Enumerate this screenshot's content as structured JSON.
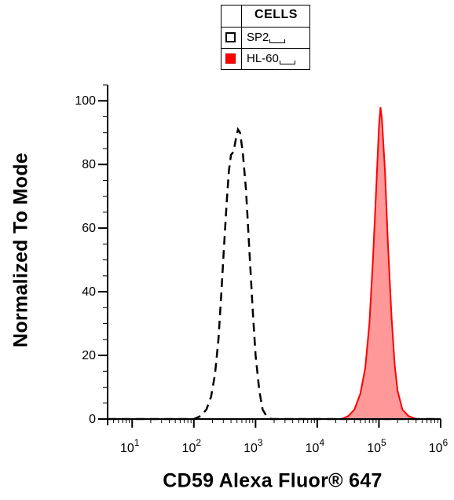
{
  "legend": {
    "title": "CELLS",
    "items": [
      {
        "label": "SP2",
        "style": "open"
      },
      {
        "label": "HL-60",
        "style": "filled"
      }
    ]
  },
  "chart_data": {
    "type": "area",
    "xlabel": "CD59 Alexa Fluor® 647",
    "ylabel": "Normalized To Mode",
    "x_scale": "log",
    "xlim": [
      4,
      1000000
    ],
    "ylim": [
      0,
      105
    ],
    "x_ticks": [
      {
        "base": "10",
        "exp": "1",
        "value": 10
      },
      {
        "base": "10",
        "exp": "2",
        "value": 100
      },
      {
        "base": "10",
        "exp": "3",
        "value": 1000
      },
      {
        "base": "10",
        "exp": "4",
        "value": 10000
      },
      {
        "base": "10",
        "exp": "5",
        "value": 100000
      },
      {
        "base": "10",
        "exp": "6",
        "value": 1000000
      }
    ],
    "y_ticks": [
      0,
      20,
      40,
      60,
      80,
      100
    ],
    "grid": false,
    "series": [
      {
        "name": "SP2",
        "style": "dashed",
        "color": "#000000",
        "fill": "none",
        "points": [
          [
            4,
            0
          ],
          [
            100,
            0
          ],
          [
            130,
            1
          ],
          [
            160,
            3
          ],
          [
            190,
            7
          ],
          [
            220,
            14
          ],
          [
            250,
            25
          ],
          [
            280,
            40
          ],
          [
            310,
            55
          ],
          [
            340,
            68
          ],
          [
            370,
            78
          ],
          [
            400,
            83
          ],
          [
            440,
            84
          ],
          [
            480,
            88
          ],
          [
            520,
            91
          ],
          [
            560,
            90
          ],
          [
            620,
            84
          ],
          [
            700,
            72
          ],
          [
            800,
            52
          ],
          [
            900,
            34
          ],
          [
            1000,
            20
          ],
          [
            1150,
            9
          ],
          [
            1300,
            3
          ],
          [
            1500,
            1
          ],
          [
            1800,
            0
          ],
          [
            1000000,
            0
          ]
        ]
      },
      {
        "name": "HL-60",
        "style": "solid",
        "color": "#ff0000",
        "fill": "#ff9999",
        "points": [
          [
            4,
            0
          ],
          [
            25000,
            0
          ],
          [
            32000,
            1
          ],
          [
            40000,
            3
          ],
          [
            50000,
            8
          ],
          [
            60000,
            16
          ],
          [
            70000,
            30
          ],
          [
            80000,
            50
          ],
          [
            90000,
            72
          ],
          [
            100000,
            92
          ],
          [
            106000,
            98
          ],
          [
            112000,
            94
          ],
          [
            125000,
            78
          ],
          [
            140000,
            55
          ],
          [
            160000,
            32
          ],
          [
            180000,
            17
          ],
          [
            200000,
            9
          ],
          [
            240000,
            3
          ],
          [
            300000,
            1
          ],
          [
            400000,
            0
          ],
          [
            1000000,
            0
          ]
        ]
      }
    ]
  }
}
